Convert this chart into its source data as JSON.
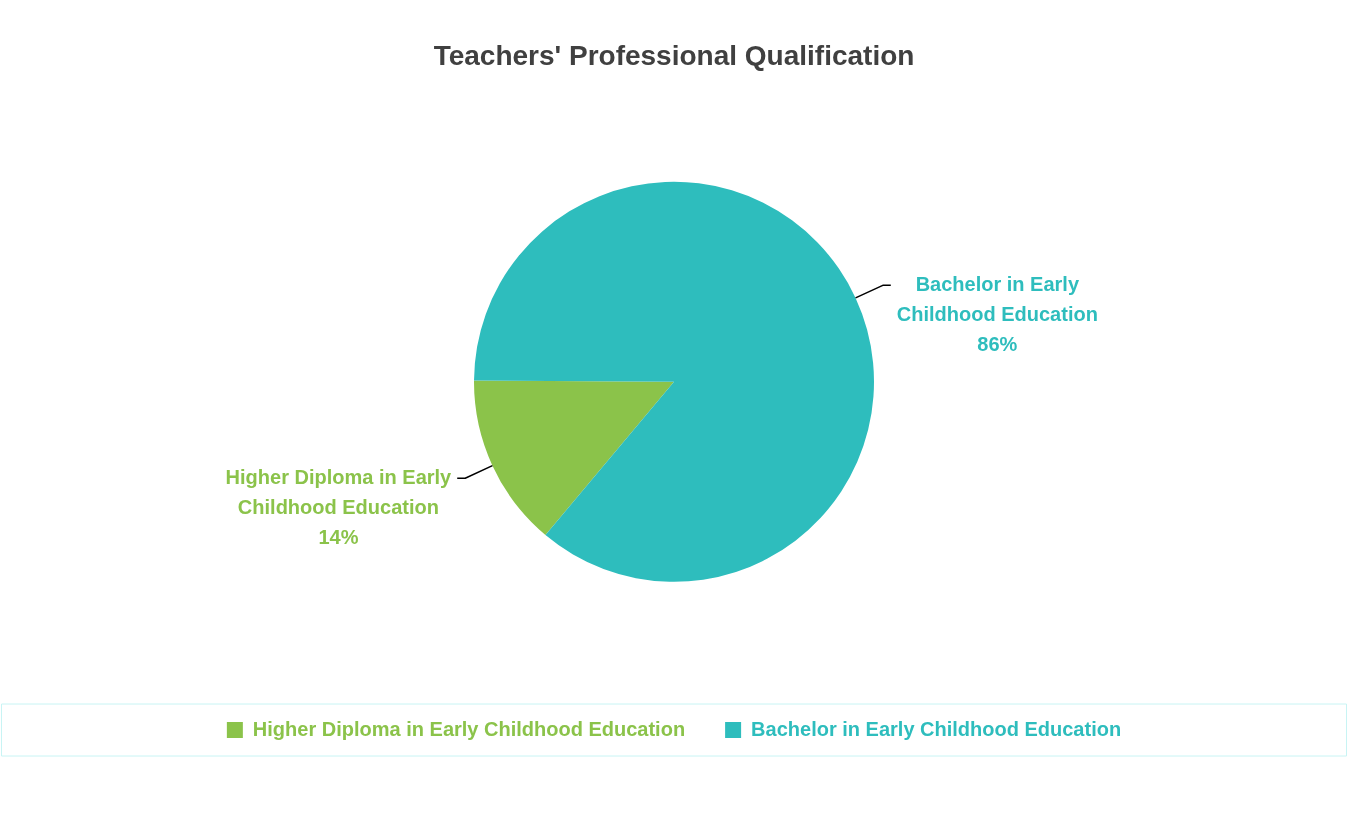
{
  "chart_data": {
    "type": "pie",
    "title": "Teachers' Professional Qualification",
    "categories": [
      "Higher Diploma in Early Childhood Education",
      "Bachelor in Early Childhood Education"
    ],
    "values": [
      14,
      86
    ],
    "colors": [
      "#8bc34a",
      "#2ebdbd"
    ],
    "value_labels": [
      "14%",
      "86%"
    ],
    "legend": "bottom"
  }
}
